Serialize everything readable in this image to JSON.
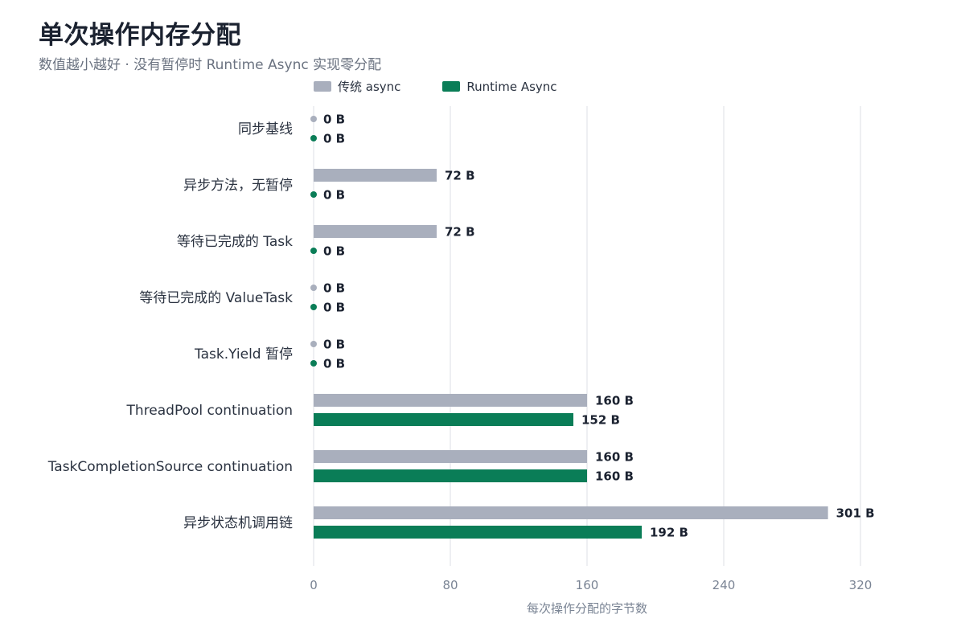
{
  "title": "单次操作内存分配",
  "subtitle": "数值越小越好 · 没有暂停时 Runtime Async 实现零分配",
  "colors": {
    "legacy": "#a9afbd",
    "runtime": "#0a7d57",
    "grid": "#e8eaee"
  },
  "chart_data": {
    "type": "bar",
    "orientation": "horizontal",
    "categories": [
      "同步基线",
      "异步方法，无暂停",
      "等待已完成的 Task",
      "等待已完成的 ValueTask",
      "Task.Yield 暂停",
      "ThreadPool continuation",
      "TaskCompletionSource continuation",
      "异步状态机调用链"
    ],
    "series": [
      {
        "name": "传统 async",
        "values": [
          0,
          72,
          72,
          0,
          0,
          160,
          160,
          301
        ]
      },
      {
        "name": "Runtime Async",
        "values": [
          0,
          0,
          0,
          0,
          0,
          152,
          160,
          192
        ]
      }
    ],
    "unit": "B",
    "xlabel": "每次操作分配的字节数",
    "xlim": [
      0,
      320
    ],
    "xticks": [
      0,
      80,
      160,
      240,
      320
    ],
    "grid": true,
    "legend": "top"
  }
}
